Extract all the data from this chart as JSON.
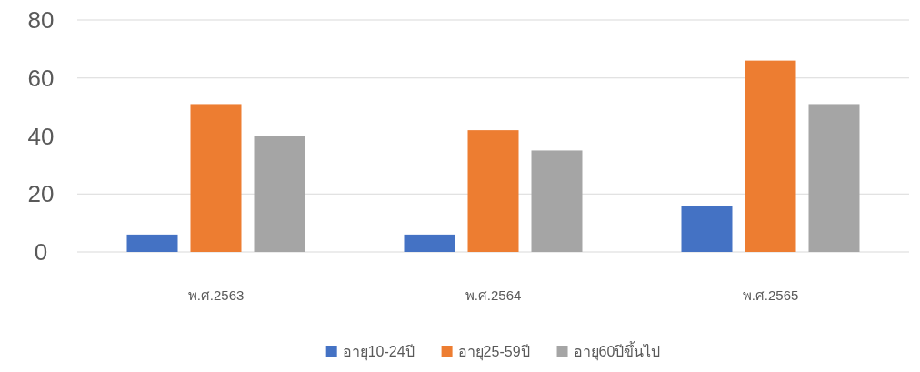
{
  "chart_data": {
    "type": "bar",
    "categories": [
      "พ.ศ.2563",
      "พ.ศ.2564",
      "พ.ศ.2565"
    ],
    "series": [
      {
        "name": "อายุ10-24ปี",
        "color": "#4472c4",
        "values": [
          6,
          6,
          16
        ]
      },
      {
        "name": "อายุ25-59ปี",
        "color": "#ed7d31",
        "values": [
          51,
          42,
          66
        ]
      },
      {
        "name": "อายุ60ปีขึ้นไป",
        "color": "#a5a5a5",
        "values": [
          40,
          35,
          51
        ]
      }
    ],
    "ylim": [
      0,
      80
    ],
    "yticks": [
      0,
      20,
      40,
      60,
      80
    ],
    "grid": "y",
    "legend": "bottom"
  }
}
